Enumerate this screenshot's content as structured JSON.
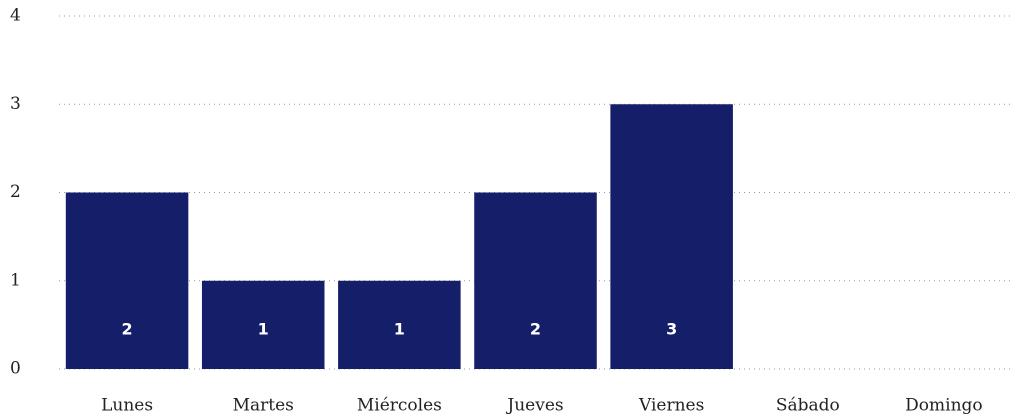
{
  "chart_data": {
    "type": "bar",
    "categories": [
      "Lunes",
      "Martes",
      "Miércoles",
      "Jueves",
      "Viernes",
      "Sábado",
      "Domingo"
    ],
    "values": [
      2,
      1,
      1,
      2,
      3,
      0,
      0
    ],
    "color": "#151e68",
    "ylim": [
      0,
      4
    ],
    "yticks": [
      0,
      1,
      2,
      3,
      4
    ],
    "grid": true
  }
}
